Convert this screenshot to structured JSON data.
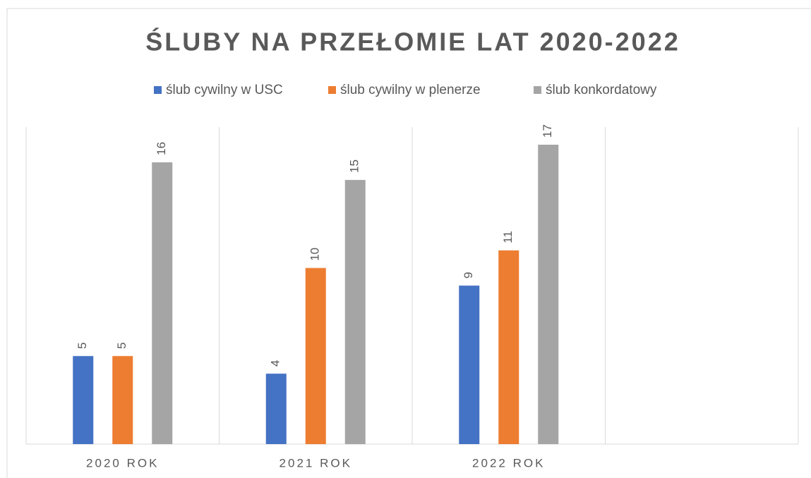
{
  "chart_data": {
    "type": "bar",
    "title": "ŚLUBY NA PRZEŁOMIE LAT 2020-2022",
    "categories": [
      "2020 ROK",
      "2021 ROK",
      "2022 ROK",
      null
    ],
    "series": [
      {
        "name": "ślub cywilny w USC",
        "color": "#4472c4",
        "values": [
          5,
          4,
          9,
          null
        ]
      },
      {
        "name": "ślub cywilny w plenerze",
        "color": "#ed7d31",
        "values": [
          5,
          10,
          11,
          null
        ]
      },
      {
        "name": "ślub konkordatowy",
        "color": "#a5a5a5",
        "values": [
          16,
          15,
          17,
          null
        ]
      }
    ],
    "ylim": [
      0,
      18
    ]
  }
}
